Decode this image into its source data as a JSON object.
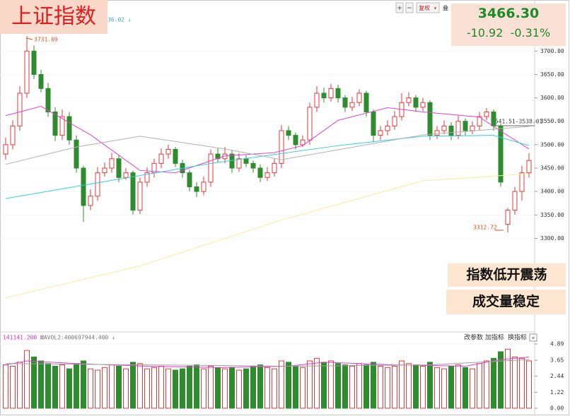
{
  "chart_data": {
    "type": "candlestick",
    "title": "上证指数",
    "last": "3466.30",
    "change": "-10.92  -0.31%",
    "annotations": [
      "指数低开震荡",
      "成交量稳定"
    ],
    "high_label": "3731.69",
    "low_label": "3312.72",
    "range_label": "3541.51-3538.01",
    "ma_legend": "36.02 ↓",
    "vol_legend": [
      "141141.200 ↓",
      "MAVOL2:400697944.400 ↓"
    ],
    "toolbar": [
      "+",
      "−",
      "复权 ▾",
      "叠"
    ],
    "vol_buttons": [
      "改参数",
      "加指标",
      "换指标",
      "×"
    ],
    "up_color": "#e23a3a",
    "down_color": "#2e8b2e",
    "grid": true,
    "open": [
      3480,
      3500,
      3540,
      3610,
      3700,
      3650,
      3620,
      3570,
      3520,
      3560,
      3510,
      3450,
      3370,
      3390,
      3440,
      3450,
      3470,
      3430,
      3440,
      3360,
      3420,
      3440,
      3460,
      3480,
      3490,
      3460,
      3440,
      3410,
      3400,
      3420,
      3480,
      3470,
      3480,
      3450,
      3470,
      3460,
      3450,
      3430,
      3440,
      3460,
      3530,
      3520,
      3500,
      3510,
      3580,
      3610,
      3600,
      3620,
      3600,
      3580,
      3590,
      3610,
      3570,
      3520,
      3530,
      3540,
      3560,
      3590,
      3600,
      3580,
      3590,
      3520,
      3530,
      3540,
      3520,
      3550,
      3530,
      3540,
      3560,
      3570,
      3540,
      3330,
      3360,
      3400,
      3440
    ],
    "high": [
      3515,
      3552,
      3625,
      3731.69,
      3712,
      3660,
      3632,
      3580,
      3575,
      3570,
      3520,
      3455,
      3405,
      3452,
      3462,
      3482,
      3478,
      3450,
      3445,
      3430,
      3452,
      3470,
      3492,
      3500,
      3495,
      3468,
      3446,
      3420,
      3432,
      3490,
      3492,
      3495,
      3488,
      3482,
      3478,
      3466,
      3458,
      3452,
      3470,
      3542,
      3540,
      3526,
      3520,
      3590,
      3625,
      3622,
      3630,
      3628,
      3606,
      3602,
      3618,
      3615,
      3575,
      3540,
      3552,
      3572,
      3610,
      3612,
      3606,
      3600,
      3595,
      3540,
      3552,
      3548,
      3562,
      3556,
      3550,
      3570,
      3578,
      3575,
      3545,
      3365,
      3410,
      3455,
      3482
    ],
    "low": [
      3468,
      3490,
      3530,
      3600,
      3640,
      3612,
      3560,
      3508,
      3510,
      3500,
      3440,
      3335,
      3360,
      3380,
      3432,
      3440,
      3420,
      3425,
      3350,
      3352,
      3410,
      3430,
      3450,
      3470,
      3452,
      3430,
      3400,
      3388,
      3392,
      3410,
      3462,
      3460,
      3440,
      3442,
      3452,
      3440,
      3420,
      3422,
      3432,
      3450,
      3510,
      3490,
      3495,
      3500,
      3570,
      3590,
      3592,
      3590,
      3570,
      3572,
      3582,
      3560,
      3505,
      3510,
      3520,
      3532,
      3552,
      3582,
      3570,
      3572,
      3510,
      3512,
      3522,
      3510,
      3512,
      3520,
      3522,
      3530,
      3552,
      3530,
      3410,
      3312.72,
      3350,
      3380,
      3430
    ],
    "close": [
      3500,
      3540,
      3610,
      3700,
      3650,
      3620,
      3570,
      3520,
      3560,
      3510,
      3450,
      3370,
      3390,
      3440,
      3450,
      3470,
      3430,
      3440,
      3360,
      3420,
      3440,
      3460,
      3480,
      3490,
      3460,
      3440,
      3410,
      3400,
      3420,
      3480,
      3470,
      3480,
      3450,
      3470,
      3460,
      3450,
      3430,
      3440,
      3460,
      3530,
      3520,
      3500,
      3510,
      3580,
      3610,
      3600,
      3620,
      3600,
      3580,
      3590,
      3610,
      3570,
      3520,
      3530,
      3540,
      3560,
      3590,
      3600,
      3580,
      3590,
      3520,
      3530,
      3540,
      3520,
      3550,
      3530,
      3540,
      3560,
      3570,
      3540,
      3420,
      3360,
      3400,
      3440,
      3466.3
    ],
    "volume": [
      3.3,
      3.2,
      3.5,
      4.4,
      3.9,
      3.6,
      3.4,
      3.2,
      3.3,
      3.0,
      3.4,
      3.6,
      3.0,
      2.9,
      3.1,
      3.3,
      3.2,
      3.0,
      3.5,
      3.4,
      3.0,
      3.1,
      3.2,
      3.0,
      2.9,
      3.0,
      3.2,
      3.3,
      3.0,
      3.2,
      3.1,
      3.0,
      3.1,
      2.9,
      3.0,
      3.2,
      3.3,
      3.1,
      3.0,
      3.6,
      3.5,
      3.2,
      3.1,
      3.6,
      3.8,
      3.5,
      3.6,
      3.4,
      3.3,
      3.2,
      3.4,
      3.3,
      3.5,
      3.2,
      3.1,
      3.2,
      3.6,
      3.4,
      3.3,
      3.2,
      3.5,
      3.1,
      3.0,
      3.2,
      3.3,
      3.1,
      3.0,
      3.4,
      3.6,
      3.8,
      4.3,
      4.5,
      3.9,
      3.8,
      3.6
    ],
    "ma_lines": [
      {
        "color": "#e040d0",
        "x": [
          0,
          5,
          12,
          19,
          24,
          31,
          38,
          42,
          47,
          54,
          59,
          67,
          70,
          74
        ],
        "values": [
          3562,
          3582,
          3521,
          3445,
          3440,
          3476,
          3483,
          3498,
          3552,
          3579,
          3570,
          3559,
          3529,
          3491
        ]
      },
      {
        "color": "#30d0e0",
        "x": [
          0,
          29,
          47,
          59,
          69,
          74
        ],
        "values": [
          3385,
          3460,
          3498,
          3518,
          3520,
          3498
        ]
      },
      {
        "color": "#b0b0b0",
        "x": [
          0,
          10,
          19,
          31,
          39,
          59,
          74
        ],
        "values": [
          3458,
          3495,
          3518,
          3491,
          3468,
          3521,
          3539
        ]
      },
      {
        "color": "#f2ee9a",
        "x": [
          0,
          19,
          39,
          59,
          74
        ],
        "values": [
          3173,
          3241,
          3339,
          3423,
          3438
        ]
      }
    ],
    "vol_ma_lines": [
      {
        "color": "#e040d0",
        "x": [
          0,
          3,
          10,
          20,
          30,
          40,
          45,
          55,
          65,
          70,
          74
        ],
        "values": [
          3.3,
          3.6,
          3.4,
          3.2,
          3.1,
          3.2,
          3.5,
          3.3,
          3.2,
          3.7,
          3.9
        ]
      },
      {
        "color": "#a0a0a0",
        "x": [
          0,
          20,
          40,
          60,
          74
        ],
        "values": [
          3.4,
          3.3,
          3.2,
          3.3,
          3.7
        ]
      }
    ],
    "ylim": [
      3103,
      3797
    ],
    "yticks": [
      {
        "value": 3300,
        "label": "3300.00"
      },
      {
        "value": 3350,
        "label": "3350.00"
      },
      {
        "value": 3400,
        "label": "3400.00"
      },
      {
        "value": 3450,
        "label": "3450.00"
      },
      {
        "value": 3500,
        "label": "3500.00"
      },
      {
        "value": 3550,
        "label": "3550.00"
      },
      {
        "value": 3600,
        "label": "3600.00"
      },
      {
        "value": 3650,
        "label": "3650.00"
      },
      {
        "value": 3700,
        "label": "3700.00"
      }
    ],
    "y2lim": [
      0,
      5.59
    ],
    "y2ticks": [
      {
        "value": 0,
        "label": "0.00"
      },
      {
        "value": 1.22,
        "label": "1.22"
      },
      {
        "value": 2.44,
        "label": "2.44"
      },
      {
        "value": 3.65,
        "label": "3.65"
      },
      {
        "value": 4.89,
        "label": "4.89"
      }
    ]
  }
}
